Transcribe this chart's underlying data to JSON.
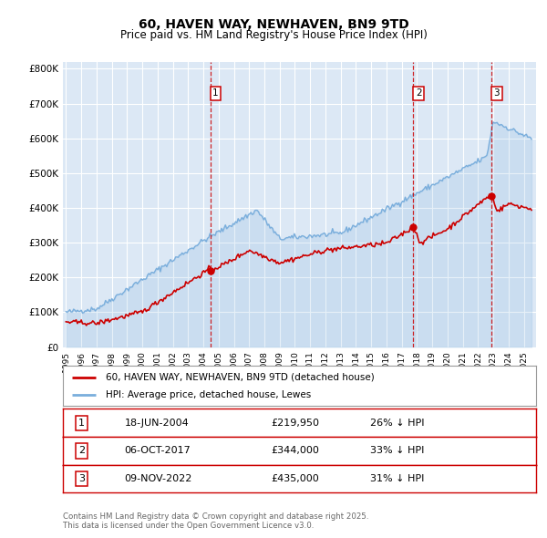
{
  "title": "60, HAVEN WAY, NEWHAVEN, BN9 9TD",
  "subtitle": "Price paid vs. HM Land Registry's House Price Index (HPI)",
  "title_fontsize": 10,
  "subtitle_fontsize": 8.5,
  "background_color": "#ffffff",
  "plot_bg_color": "#dce8f5",
  "grid_color": "#ffffff",
  "ylim": [
    0,
    820000
  ],
  "yticks": [
    0,
    100000,
    200000,
    300000,
    400000,
    500000,
    600000,
    700000,
    800000
  ],
  "ytick_labels": [
    "£0",
    "£100K",
    "£200K",
    "£300K",
    "£400K",
    "£500K",
    "£600K",
    "£700K",
    "£800K"
  ],
  "xlim_start": 1994.8,
  "xlim_end": 2025.8,
  "red_line_label": "60, HAVEN WAY, NEWHAVEN, BN9 9TD (detached house)",
  "blue_line_label": "HPI: Average price, detached house, Lewes",
  "red_color": "#cc0000",
  "blue_color": "#7aaedc",
  "sale_years": [
    2004.46,
    2017.76,
    2022.86
  ],
  "sale_prices": [
    219950,
    344000,
    435000
  ],
  "sale_labels": [
    "1",
    "2",
    "3"
  ],
  "sale_table": [
    {
      "num": "1",
      "date": "18-JUN-2004",
      "price": "£219,950",
      "pct": "26% ↓ HPI"
    },
    {
      "num": "2",
      "date": "06-OCT-2017",
      "price": "£344,000",
      "pct": "33% ↓ HPI"
    },
    {
      "num": "3",
      "date": "09-NOV-2022",
      "price": "£435,000",
      "pct": "31% ↓ HPI"
    }
  ],
  "footer": "Contains HM Land Registry data © Crown copyright and database right 2025.\nThis data is licensed under the Open Government Licence v3.0."
}
